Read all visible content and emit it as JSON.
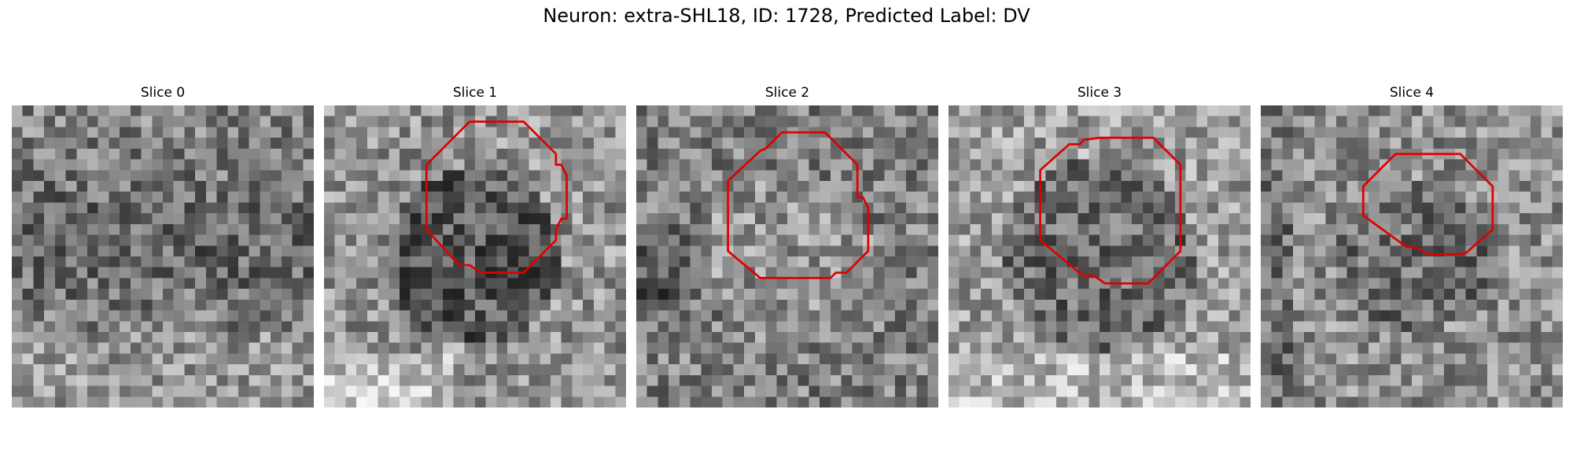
{
  "figure": {
    "title": "Neuron: extra-SHL18, ID: 1728, Predicted Label: DV",
    "outline_color": "#e00000"
  },
  "panels": [
    {
      "title": "Slice 0",
      "outline": []
    },
    {
      "title": "Slice 1",
      "outline": [
        [
          15,
          1.5
        ],
        [
          18.5,
          1.5
        ],
        [
          21.5,
          4.5
        ],
        [
          21.5,
          5.5
        ],
        [
          22,
          5.5
        ],
        [
          22.5,
          6.5
        ],
        [
          22.5,
          10.5
        ],
        [
          22,
          10.5
        ],
        [
          21.5,
          11.5
        ],
        [
          21.5,
          12.5
        ],
        [
          18.5,
          15.5
        ],
        [
          14.5,
          15.5
        ],
        [
          13.8,
          15
        ],
        [
          13.5,
          14.8
        ],
        [
          12.5,
          14.8
        ],
        [
          9.5,
          11.5
        ],
        [
          9.5,
          5.5
        ],
        [
          13.5,
          1.5
        ]
      ]
    },
    {
      "title": "Slice 2",
      "outline": [
        [
          14.5,
          2.5
        ],
        [
          17.5,
          2.5
        ],
        [
          20.5,
          5.5
        ],
        [
          20.5,
          8.5
        ],
        [
          21,
          8.5
        ],
        [
          21.5,
          9.5
        ],
        [
          21.5,
          13.5
        ],
        [
          19.5,
          15.5
        ],
        [
          18.5,
          15.5
        ],
        [
          18,
          16
        ],
        [
          11.5,
          16
        ],
        [
          8.5,
          13.5
        ],
        [
          8.5,
          7
        ],
        [
          11.5,
          4.2
        ],
        [
          12,
          4
        ],
        [
          13.5,
          2.5
        ]
      ]
    },
    {
      "title": "Slice 3",
      "outline": [
        [
          15,
          3
        ],
        [
          19,
          3
        ],
        [
          21.5,
          5.5
        ],
        [
          21.5,
          13.5
        ],
        [
          18.5,
          16.5
        ],
        [
          14.5,
          16.5
        ],
        [
          13.5,
          15.8
        ],
        [
          12.5,
          15.8
        ],
        [
          8.5,
          12.5
        ],
        [
          8.5,
          6
        ],
        [
          11.2,
          3.6
        ],
        [
          12.2,
          3.6
        ],
        [
          12.5,
          3.2
        ],
        [
          14,
          3
        ]
      ]
    },
    {
      "title": "Slice 4",
      "outline": [
        [
          15.5,
          4.5
        ],
        [
          18.5,
          4.5
        ],
        [
          21.5,
          7.5
        ],
        [
          21.5,
          11.5
        ],
        [
          19,
          13.7
        ],
        [
          18.5,
          13.8
        ],
        [
          15.5,
          13.8
        ],
        [
          14.5,
          13.2
        ],
        [
          13.5,
          13.1
        ],
        [
          9.5,
          10.2
        ],
        [
          9.5,
          7.5
        ],
        [
          12.5,
          4.5
        ]
      ]
    }
  ]
}
